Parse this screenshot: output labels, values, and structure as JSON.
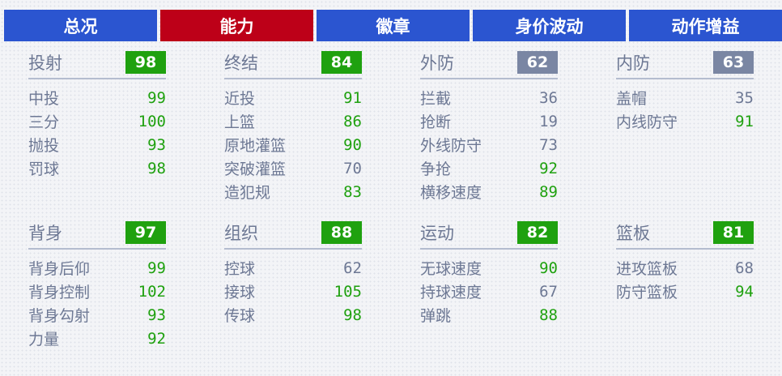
{
  "tabs": [
    {
      "label": "总况",
      "active": false
    },
    {
      "label": "能力",
      "active": true
    },
    {
      "label": "徽章",
      "active": false
    },
    {
      "label": "身价波动",
      "active": false
    },
    {
      "label": "动作增益",
      "active": false
    }
  ],
  "colors": {
    "tab": "#2b55d0",
    "tab_active": "#bd0018",
    "high": "#1fa10f",
    "low": "#6d7894",
    "badge_high": "#1fa10f",
    "badge_low": "#7a86a3"
  },
  "sections": [
    {
      "title": "投射",
      "score": "98",
      "stats": [
        {
          "label": "中投",
          "value": "99"
        },
        {
          "label": "三分",
          "value": "100"
        },
        {
          "label": "抛投",
          "value": "93"
        },
        {
          "label": "罚球",
          "value": "98"
        }
      ]
    },
    {
      "title": "终结",
      "score": "84",
      "stats": [
        {
          "label": "近投",
          "value": "91"
        },
        {
          "label": "上篮",
          "value": "86"
        },
        {
          "label": "原地灌篮",
          "value": "90"
        },
        {
          "label": "突破灌篮",
          "value": "70"
        },
        {
          "label": "造犯规",
          "value": "83"
        }
      ]
    },
    {
      "title": "外防",
      "score": "62",
      "stats": [
        {
          "label": "拦截",
          "value": "36"
        },
        {
          "label": "抢断",
          "value": "19"
        },
        {
          "label": "外线防守",
          "value": "73"
        },
        {
          "label": "争抢",
          "value": "92"
        },
        {
          "label": "横移速度",
          "value": "89"
        }
      ]
    },
    {
      "title": "内防",
      "score": "63",
      "stats": [
        {
          "label": "盖帽",
          "value": "35"
        },
        {
          "label": "内线防守",
          "value": "91"
        }
      ]
    },
    {
      "title": "背身",
      "score": "97",
      "stats": [
        {
          "label": "背身后仰",
          "value": "99"
        },
        {
          "label": "背身控制",
          "value": "102"
        },
        {
          "label": "背身勾射",
          "value": "93"
        },
        {
          "label": "力量",
          "value": "92"
        }
      ]
    },
    {
      "title": "组织",
      "score": "88",
      "stats": [
        {
          "label": "控球",
          "value": "62"
        },
        {
          "label": "接球",
          "value": "105"
        },
        {
          "label": "传球",
          "value": "98"
        }
      ]
    },
    {
      "title": "运动",
      "score": "82",
      "stats": [
        {
          "label": "无球速度",
          "value": "90"
        },
        {
          "label": "持球速度",
          "value": "67"
        },
        {
          "label": "弹跳",
          "value": "88"
        }
      ]
    },
    {
      "title": "篮板",
      "score": "81",
      "stats": [
        {
          "label": "进攻篮板",
          "value": "68"
        },
        {
          "label": "防守篮板",
          "value": "94"
        }
      ]
    }
  ]
}
